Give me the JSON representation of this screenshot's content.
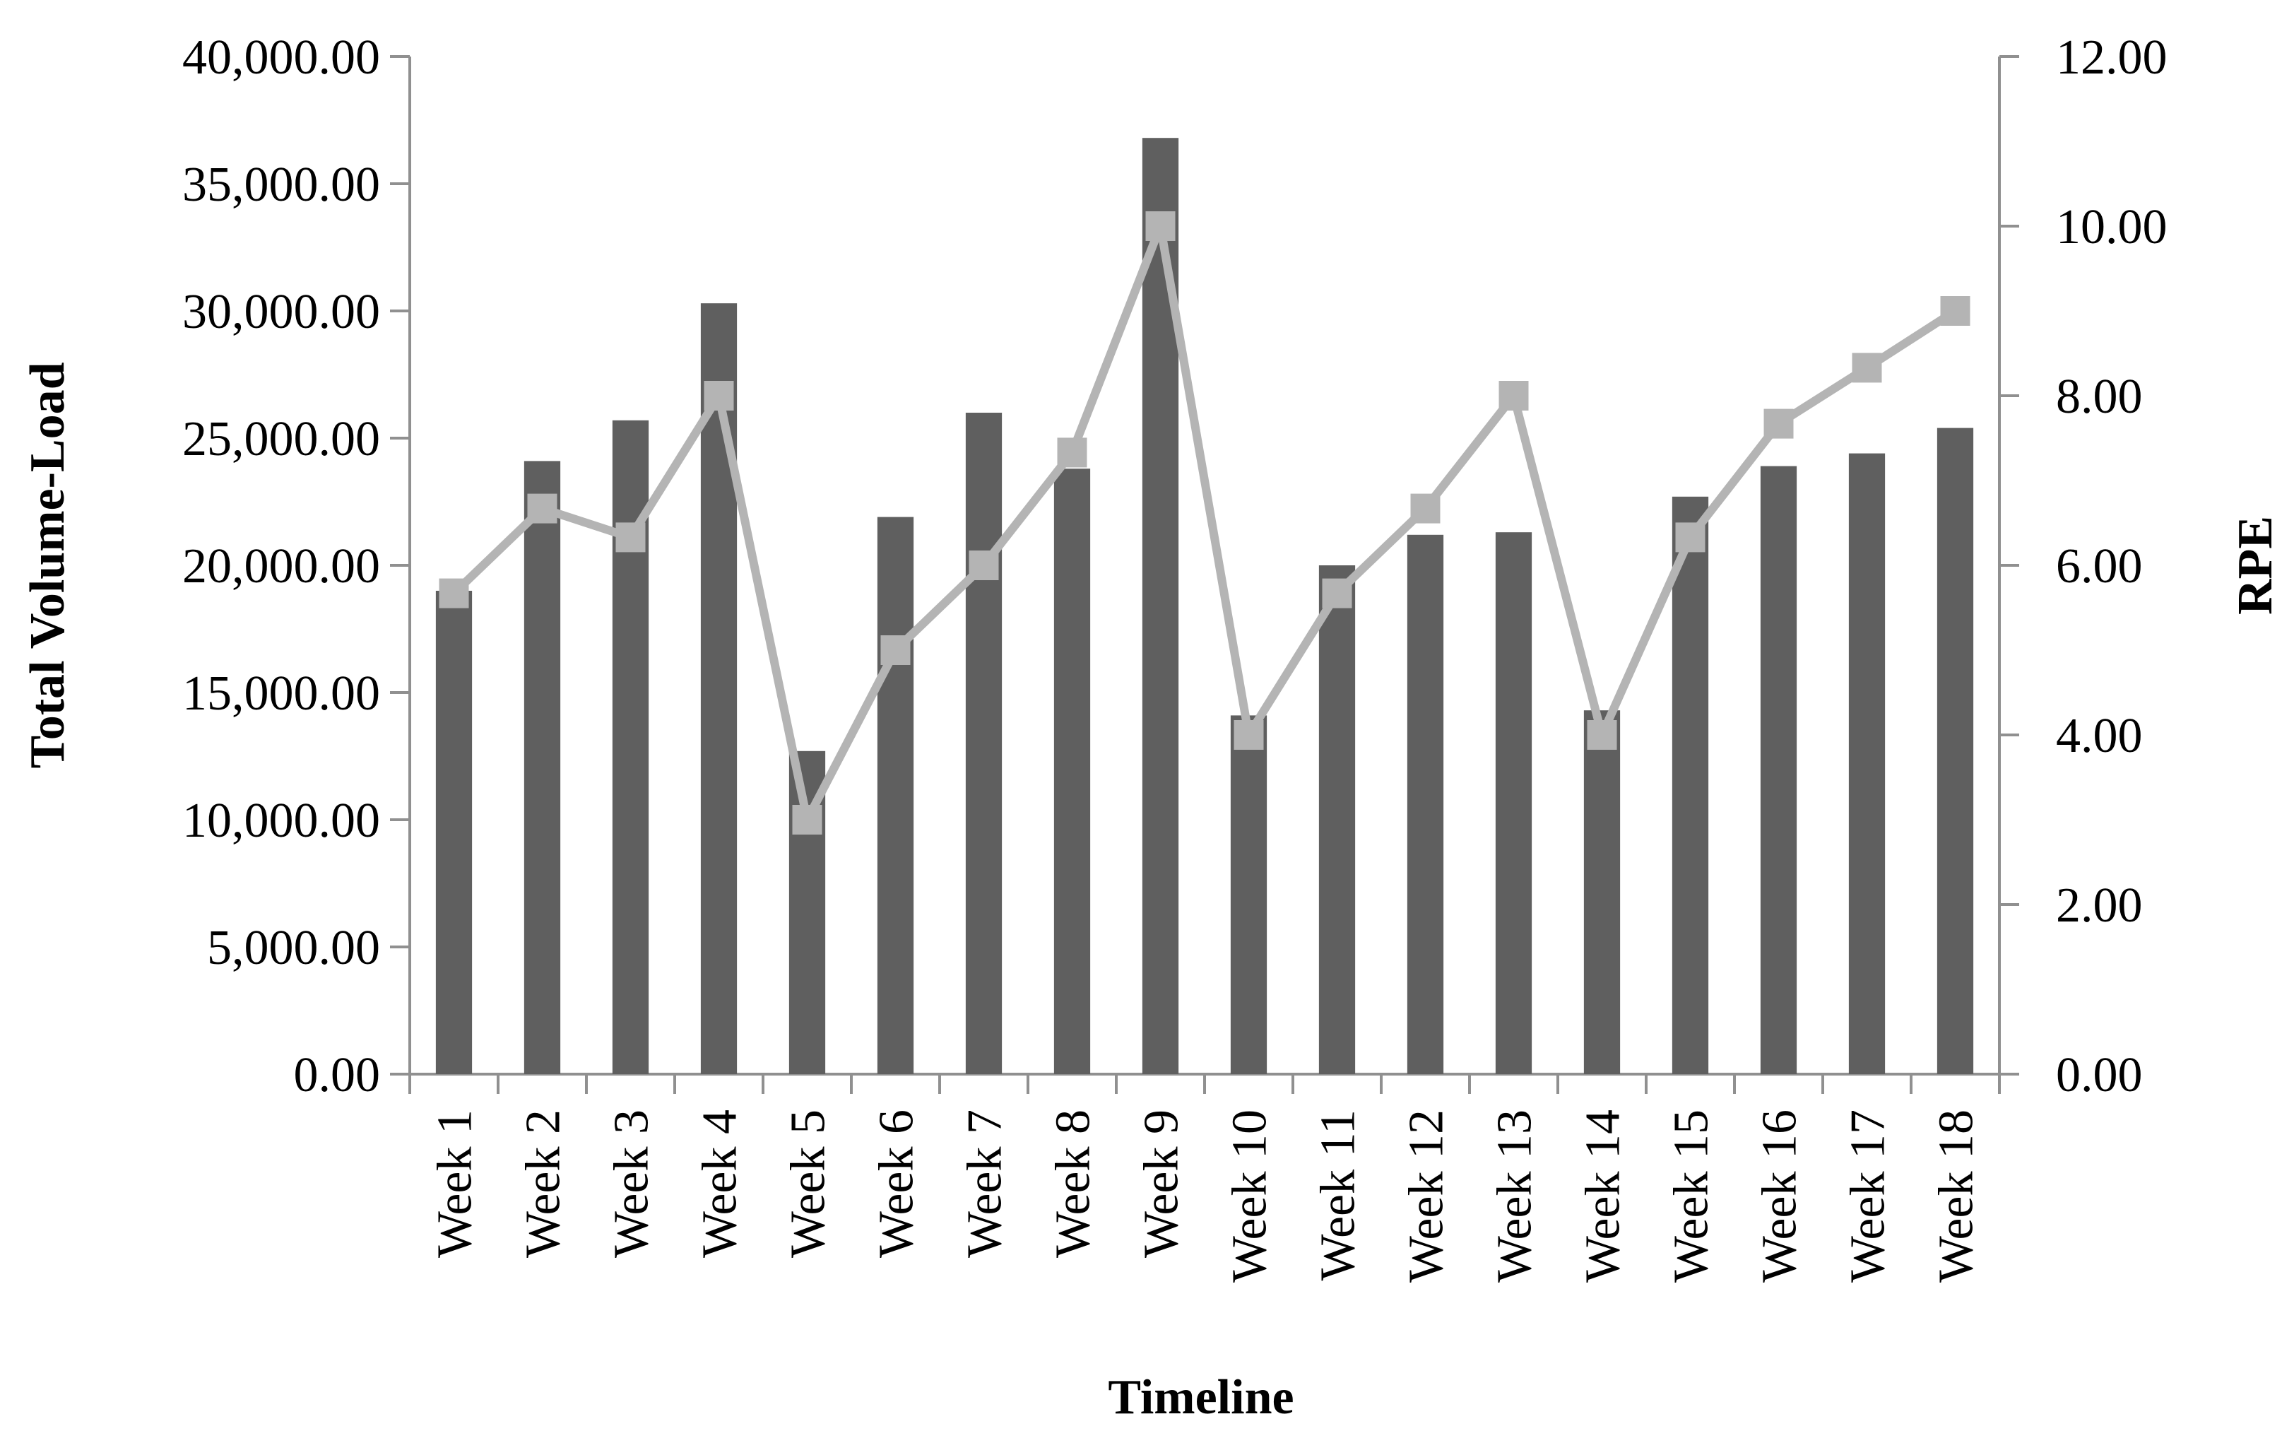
{
  "chart_data": {
    "type": "bar",
    "xlabel": "Timeline",
    "ylabel": "Total Volume-Load",
    "y2label": "RPE",
    "categories": [
      "Week 1",
      "Week 2",
      "Week 3",
      "Week 4",
      "Week 5",
      "Week 6",
      "Week 7",
      "Week 8",
      "Week 9",
      "Week 10",
      "Week 11",
      "Week 12",
      "Week 13",
      "Week 14",
      "Week 15",
      "Week 16",
      "Week 17",
      "Week 18"
    ],
    "y_ticks": [
      "0.00",
      "5,000.00",
      "10,000.00",
      "15,000.00",
      "20,000.00",
      "25,000.00",
      "30,000.00",
      "35,000.00",
      "40,000.00"
    ],
    "y2_ticks": [
      "0.00",
      "2.00",
      "4.00",
      "6.00",
      "8.00",
      "10.00",
      "12.00"
    ],
    "ylim": [
      0,
      40000
    ],
    "y2lim": [
      0,
      12
    ],
    "legend": "none",
    "grid": false,
    "series": [
      {
        "type": "bar",
        "axis": "left",
        "color": "#5f5f5f",
        "values": [
          19000,
          24100,
          25700,
          30300,
          12700,
          21900,
          26000,
          23800,
          36800,
          14100,
          20000,
          21200,
          21300,
          14300,
          22700,
          23900,
          24400,
          25400
        ]
      },
      {
        "type": "line",
        "axis": "right",
        "color": "#b4b4b4",
        "values": [
          5.67,
          6.67,
          6.33,
          8.0,
          3.0,
          5.0,
          6.0,
          7.33,
          10.0,
          4.0,
          5.67,
          6.67,
          8.0,
          4.0,
          6.33,
          7.67,
          8.33,
          9.0
        ]
      }
    ]
  }
}
